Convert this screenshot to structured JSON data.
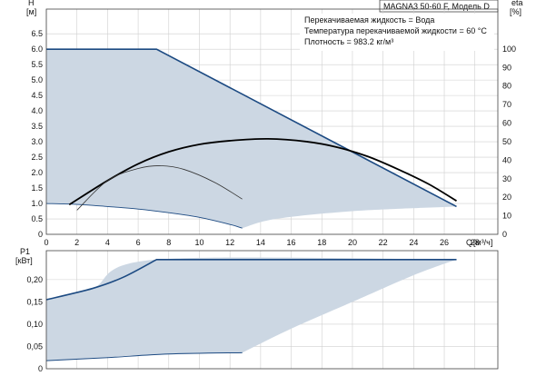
{
  "title": "MAGNA3 50-60 F, Модель D",
  "info_lines": [
    "Перекачиваемая жидкость = Вода",
    "Температура перекачиваемой жидкости = 60 °C",
    "Плотность = 983.2 кг/м³"
  ],
  "colors": {
    "area_fill": "#ccd7e3",
    "envelope_line": "#1c4a82",
    "curve_thick": "#000000",
    "curve_thin": "#333333",
    "grid": "#cfcfcf"
  },
  "chart_data": [
    {
      "type": "area",
      "name": "head",
      "ylabel": "H",
      "yunit": "[м]",
      "y2label": "eta",
      "y2unit": "[%]",
      "xlabel": "Q",
      "xunit": "[м³/ч]",
      "xlim": [
        0,
        29.5
      ],
      "ylim": [
        0,
        7.3
      ],
      "y2lim": [
        0,
        121.5
      ],
      "xticks": [
        0,
        2,
        4,
        6,
        8,
        10,
        12,
        14,
        16,
        18,
        20,
        22,
        24,
        26,
        28
      ],
      "yticks": [
        0,
        0.5,
        1.0,
        1.5,
        2.0,
        2.5,
        3.0,
        3.5,
        4.0,
        4.5,
        5.0,
        5.5,
        6.0,
        6.5
      ],
      "y2ticks": [
        0,
        10,
        20,
        30,
        40,
        50,
        60,
        70,
        80,
        90,
        100
      ],
      "grid": true,
      "envelope": {
        "x": [
          0,
          7.2,
          26.8,
          20,
          15,
          12.8
        ],
        "y": [
          6.0,
          6.0,
          0.9,
          0.75,
          0.5,
          0.2
        ]
      },
      "series": [
        {
          "style": "envelope",
          "x": [
            0,
            7.2,
            26.8
          ],
          "y": [
            6.0,
            6.0,
            0.9
          ]
        },
        {
          "style": "thin",
          "x": [
            0,
            2,
            4,
            6,
            8,
            10,
            12,
            12.8
          ],
          "y": [
            1.0,
            0.97,
            0.9,
            0.82,
            0.7,
            0.55,
            0.32,
            0.2
          ]
        },
        {
          "style": "eta_thick",
          "x": [
            1.5,
            4,
            6,
            8,
            10,
            12,
            14.5,
            17,
            19,
            21,
            23,
            25,
            26.8
          ],
          "y": [
            16,
            29,
            38,
            44.5,
            48.5,
            50.5,
            51.5,
            50,
            47,
            42,
            35,
            27,
            18
          ]
        },
        {
          "style": "eta_thin",
          "x": [
            2,
            4,
            6,
            7.5,
            9,
            11,
            12.8
          ],
          "y": [
            13,
            29,
            35.5,
            37,
            35,
            28,
            19
          ]
        }
      ]
    },
    {
      "type": "area",
      "name": "power",
      "ylabel": "P1",
      "yunit": "[кВт]",
      "xlim": [
        0,
        29.5
      ],
      "ylim": [
        0,
        0.265
      ],
      "yticks": [
        0,
        0.05,
        0.1,
        0.15,
        0.2
      ],
      "ytick_labels": [
        "0",
        "0,05",
        "0,10",
        "0,15",
        "0,20"
      ],
      "grid": true,
      "envelope": {
        "x": [
          0,
          3,
          7.2,
          26.8,
          24,
          20,
          16,
          12.8,
          6,
          0
        ],
        "y": [
          0.155,
          0.18,
          0.245,
          0.245,
          0.21,
          0.15,
          0.09,
          0.036,
          0.03,
          0.018
        ]
      },
      "series": [
        {
          "style": "envelope",
          "x": [
            0,
            3,
            5,
            7.2,
            26.8
          ],
          "y": [
            0.155,
            0.18,
            0.205,
            0.245,
            0.245
          ]
        },
        {
          "style": "envelope",
          "x": [
            0,
            4,
            8,
            12.8
          ],
          "y": [
            0.018,
            0.025,
            0.033,
            0.036
          ]
        }
      ]
    }
  ]
}
